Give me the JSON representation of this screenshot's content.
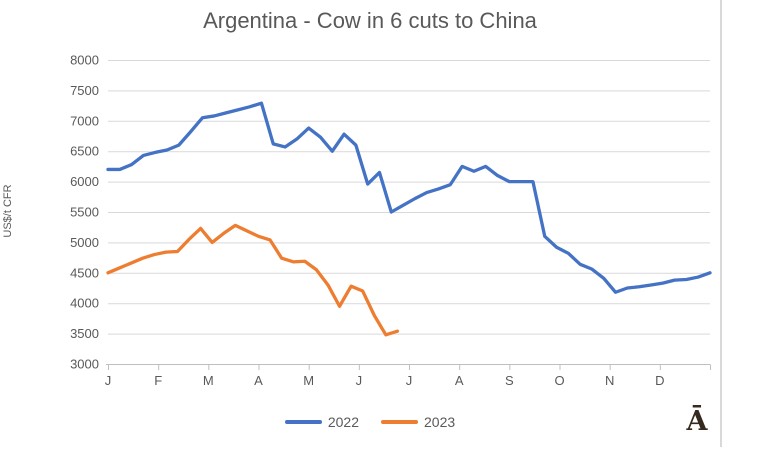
{
  "chart": {
    "watermark": "Ā"
  },
  "chart_data": {
    "type": "line",
    "title": "Argentina - Cow in 6 cuts to China",
    "xlabel": "",
    "ylabel": "US$/t CFR",
    "categories": [
      "J",
      "F",
      "M",
      "A",
      "M",
      "J",
      "J",
      "A",
      "S",
      "O",
      "N",
      "D"
    ],
    "x_unit": "weekly points, Jan–Dec",
    "ylim": [
      3000,
      8000
    ],
    "ytick_step": 500,
    "grid": true,
    "legend_position": "bottom",
    "colors": {
      "grid": "#d9d9d9",
      "axis": "#bfbfbf",
      "text": "#595959"
    },
    "series": [
      {
        "name": "2022",
        "color": "#4472c4",
        "values": [
          6200,
          6200,
          6280,
          6430,
          6480,
          6520,
          6600,
          6820,
          7050,
          7080,
          7130,
          7180,
          7230,
          7290,
          6620,
          6570,
          6700,
          6880,
          6730,
          6500,
          6780,
          6600,
          5960,
          6150,
          5500,
          5610,
          5720,
          5820,
          5880,
          5950,
          6250,
          6170,
          6250,
          6100,
          6000,
          6000,
          6000,
          5100,
          4920,
          4820,
          4640,
          4560,
          4410,
          4180,
          4250,
          4270,
          4300,
          4330,
          4380,
          4390,
          4430,
          4500
        ]
      },
      {
        "name": "2023",
        "color": "#ed7d31",
        "values": [
          4500,
          4580,
          4660,
          4740,
          4800,
          4840,
          4850,
          5050,
          5230,
          5000,
          5150,
          5280,
          5190,
          5100,
          5040,
          4740,
          4680,
          4690,
          4550,
          4300,
          3950,
          4280,
          4200,
          3800,
          3480,
          3540
        ]
      }
    ]
  }
}
